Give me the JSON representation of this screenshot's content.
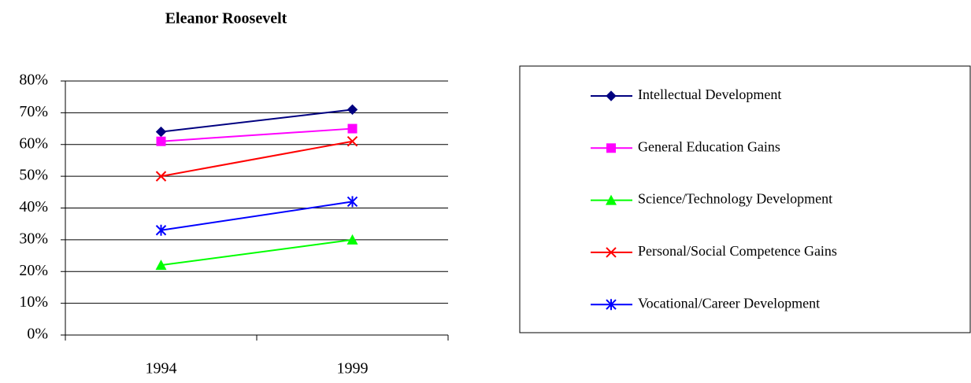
{
  "chart_data": {
    "type": "line",
    "title": "Eleanor Roosevelt",
    "categories": [
      "1994",
      "1999"
    ],
    "series": [
      {
        "name": "Intellectual Development",
        "color": "#000080",
        "marker": "diamond",
        "values": [
          64,
          71
        ]
      },
      {
        "name": "General Education Gains",
        "color": "#ff00ff",
        "marker": "square",
        "values": [
          61,
          65
        ]
      },
      {
        "name": "Science/Technology Development",
        "color": "#00ff00",
        "marker": "triangle",
        "values": [
          22,
          30
        ]
      },
      {
        "name": "Personal/Social Competence Gains",
        "color": "#ff0000",
        "marker": "x",
        "values": [
          50,
          61
        ]
      },
      {
        "name": "Vocational/Career Development",
        "color": "#0000ff",
        "marker": "star",
        "values": [
          33,
          42
        ]
      }
    ],
    "ylim": [
      0,
      80
    ],
    "yticks": [
      {
        "value": 0,
        "label": "0%"
      },
      {
        "value": 10,
        "label": "10%"
      },
      {
        "value": 20,
        "label": "20%"
      },
      {
        "value": 30,
        "label": "30%"
      },
      {
        "value": 40,
        "label": "40%"
      },
      {
        "value": 50,
        "label": "50%"
      },
      {
        "value": 60,
        "label": "60%"
      },
      {
        "value": 70,
        "label": "70%"
      },
      {
        "value": 80,
        "label": "80%"
      }
    ],
    "grid": true,
    "legend": "right"
  }
}
